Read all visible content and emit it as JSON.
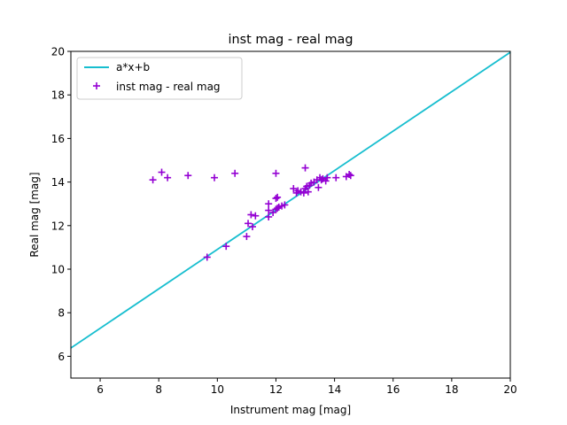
{
  "chart_data": {
    "type": "scatter",
    "title": "inst mag - real mag",
    "xlabel": "Instrument mag [mag]",
    "ylabel": "Real mag [mag]",
    "xlim": [
      5,
      20
    ],
    "ylim": [
      5,
      20
    ],
    "xticks": [
      6,
      8,
      10,
      12,
      14,
      16,
      18,
      20
    ],
    "yticks": [
      6,
      8,
      10,
      12,
      14,
      16,
      18,
      20
    ],
    "grid": false,
    "legend_position": "top-left",
    "series": [
      {
        "name": "a*x+b",
        "kind": "line",
        "color": "#17becf",
        "x": [
          5,
          20
        ],
        "y": [
          6.38,
          19.96
        ]
      },
      {
        "name": "inst mag - real mag",
        "kind": "scatter",
        "marker": "plus",
        "color": "#9400d3",
        "points": [
          [
            7.8,
            14.1
          ],
          [
            8.1,
            14.45
          ],
          [
            8.3,
            14.2
          ],
          [
            9.0,
            14.3
          ],
          [
            9.9,
            14.2
          ],
          [
            10.6,
            14.4
          ],
          [
            9.65,
            10.55
          ],
          [
            10.3,
            11.05
          ],
          [
            11.0,
            11.5
          ],
          [
            11.05,
            12.1
          ],
          [
            11.2,
            11.95
          ],
          [
            11.15,
            12.5
          ],
          [
            11.3,
            12.45
          ],
          [
            11.75,
            12.4
          ],
          [
            11.75,
            12.7
          ],
          [
            11.75,
            13.0
          ],
          [
            11.9,
            12.6
          ],
          [
            12.0,
            12.75
          ],
          [
            12.05,
            12.8
          ],
          [
            12.1,
            12.85
          ],
          [
            12.2,
            12.9
          ],
          [
            12.3,
            12.95
          ],
          [
            12.0,
            13.25
          ],
          [
            12.05,
            13.3
          ],
          [
            12.0,
            14.4
          ],
          [
            12.6,
            13.7
          ],
          [
            12.7,
            13.5
          ],
          [
            12.75,
            13.6
          ],
          [
            12.85,
            13.55
          ],
          [
            12.95,
            13.5
          ],
          [
            13.0,
            13.7
          ],
          [
            13.05,
            13.8
          ],
          [
            13.1,
            13.55
          ],
          [
            13.15,
            13.85
          ],
          [
            13.2,
            13.95
          ],
          [
            13.3,
            14.0
          ],
          [
            13.4,
            14.1
          ],
          [
            13.45,
            13.75
          ],
          [
            13.5,
            14.2
          ],
          [
            13.55,
            14.1
          ],
          [
            13.6,
            14.15
          ],
          [
            13.7,
            14.05
          ],
          [
            13.75,
            14.2
          ],
          [
            13.0,
            14.65
          ],
          [
            14.05,
            14.2
          ],
          [
            14.4,
            14.25
          ],
          [
            14.55,
            14.3
          ],
          [
            14.5,
            14.35
          ]
        ]
      }
    ]
  }
}
